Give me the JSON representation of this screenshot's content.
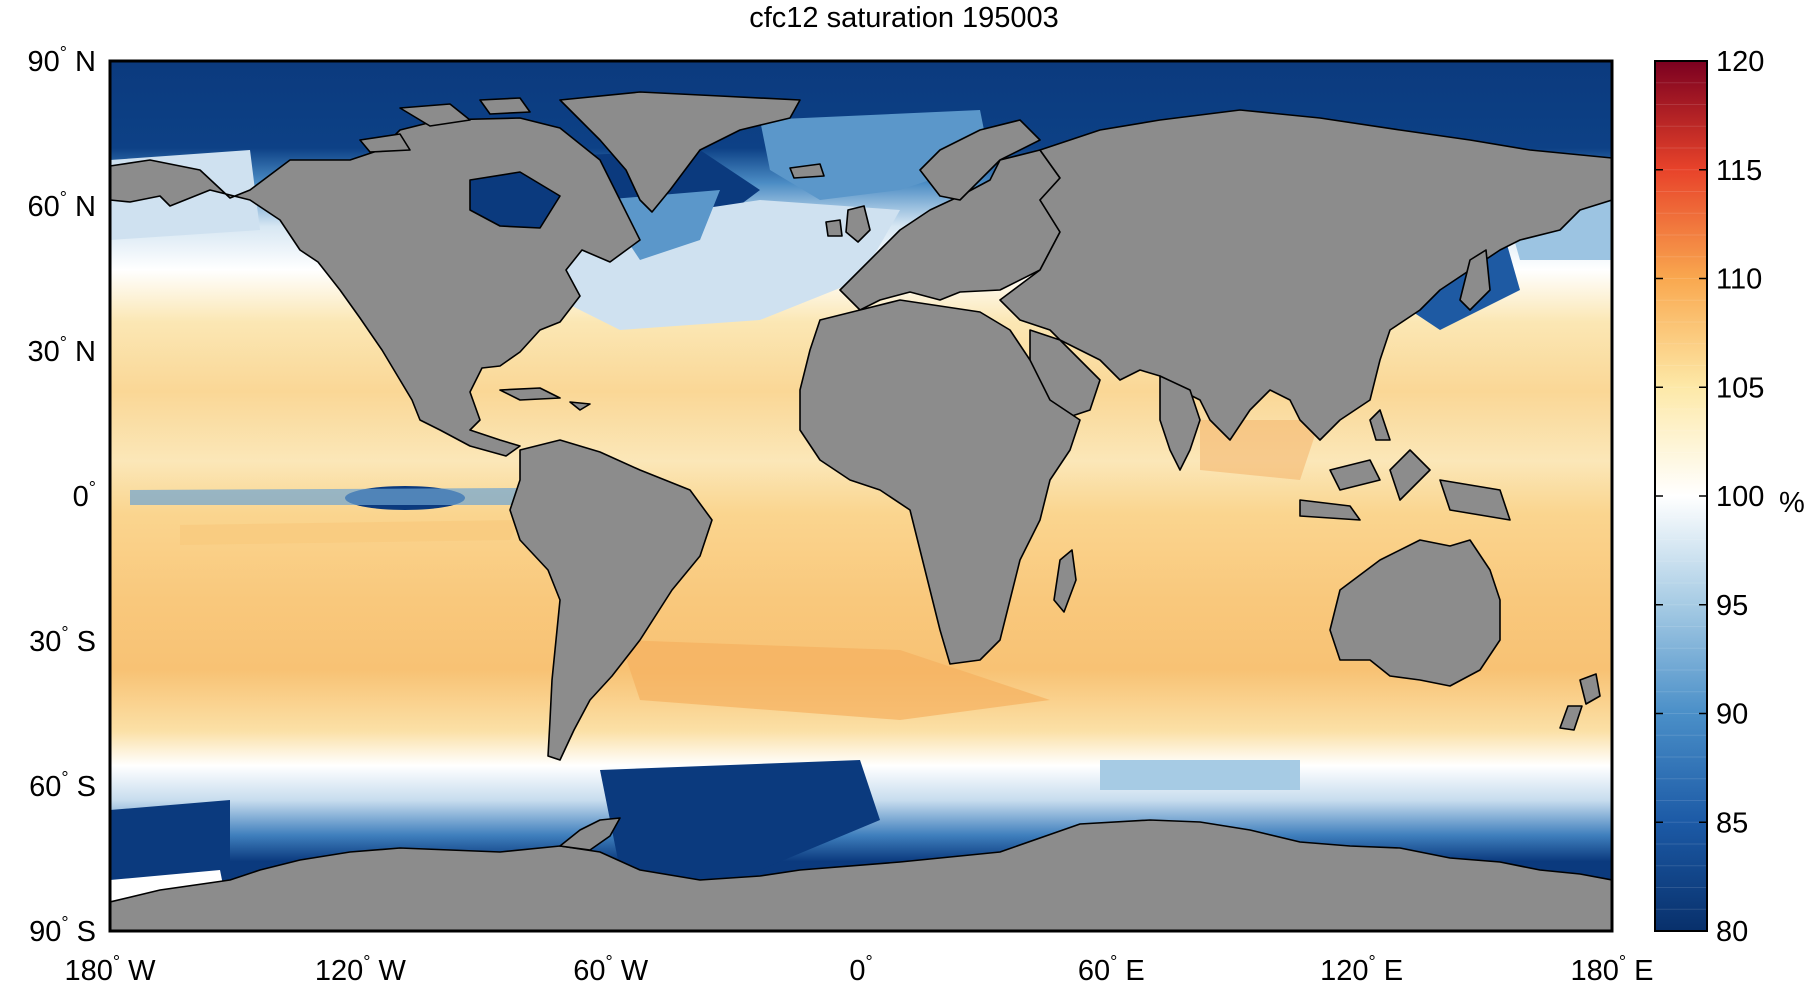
{
  "title": "cfc12 saturation 195003",
  "axes": {
    "x_ticks": [
      {
        "deg": "180",
        "hemi": "W"
      },
      {
        "deg": "120",
        "hemi": "W"
      },
      {
        "deg": "60",
        "hemi": "W"
      },
      {
        "deg": "0",
        "hemi": ""
      },
      {
        "deg": "60",
        "hemi": "E"
      },
      {
        "deg": "120",
        "hemi": "E"
      },
      {
        "deg": "180",
        "hemi": "E"
      }
    ],
    "y_ticks": [
      {
        "deg": "90",
        "hemi": "N"
      },
      {
        "deg": "60",
        "hemi": "N"
      },
      {
        "deg": "30",
        "hemi": "N"
      },
      {
        "deg": "0",
        "hemi": ""
      },
      {
        "deg": "30",
        "hemi": "S"
      },
      {
        "deg": "60",
        "hemi": "S"
      },
      {
        "deg": "90",
        "hemi": "S"
      }
    ],
    "xlim": [
      -180,
      180
    ],
    "ylim": [
      -90,
      90
    ]
  },
  "colorbar": {
    "ticks": [
      "80",
      "85",
      "90",
      "95",
      "100",
      "105",
      "110",
      "115",
      "120"
    ],
    "range": [
      80,
      120
    ],
    "unit": "%",
    "colors": [
      "#0a2d6b",
      "#1a57a5",
      "#4a8ec7",
      "#a6cbe4",
      "#ffffff",
      "#fce9a8",
      "#f9b659",
      "#f05a33",
      "#b01020",
      "#7b0020"
    ]
  },
  "colors": {
    "land": "#8c8c8c",
    "coast": "#000000",
    "ice_ocean": "#0b3a7e",
    "warm_ocean": "#fad796"
  }
}
